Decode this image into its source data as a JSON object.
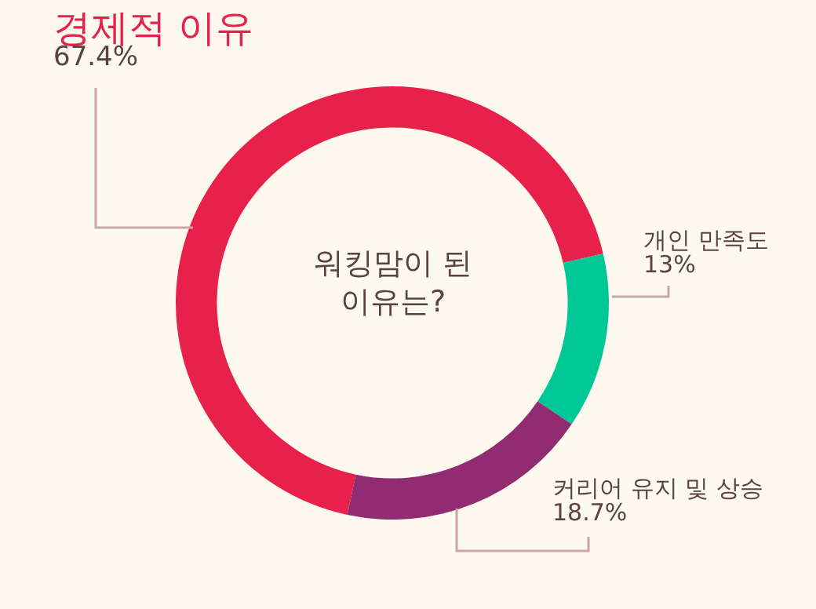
{
  "chart_data": {
    "type": "donut",
    "title": "워킹맘이 된 이유는?",
    "categories": [
      "경제적 이유",
      "개인 만족도",
      "커리어 유지 및 상승"
    ],
    "values": [
      67.4,
      13,
      18.7
    ],
    "value_labels": [
      "67.4%",
      "13%",
      "18.7%"
    ],
    "colors": [
      "#e8214a",
      "#00c796",
      "#922c72"
    ]
  }
}
